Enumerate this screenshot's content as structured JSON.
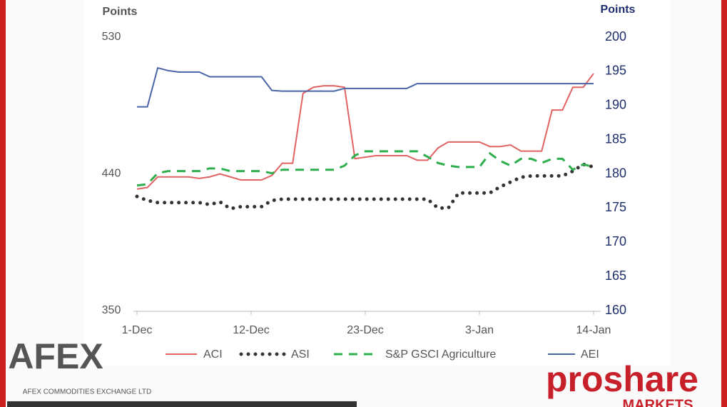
{
  "chart_data": {
    "type": "line",
    "y_label": "Points",
    "y2_label": "Points",
    "categories": [
      "1-Dec",
      null,
      null,
      null,
      null,
      null,
      null,
      null,
      null,
      null,
      null,
      "12-Dec",
      null,
      null,
      null,
      null,
      null,
      null,
      null,
      null,
      null,
      null,
      "23-Dec",
      null,
      null,
      null,
      null,
      null,
      null,
      null,
      null,
      null,
      null,
      "3-Jan",
      null,
      null,
      null,
      null,
      null,
      null,
      null,
      null,
      null,
      null,
      "14-Jan"
    ],
    "ylim": [
      350,
      530
    ],
    "yticks": [
      350,
      440,
      530
    ],
    "y2lim": [
      160,
      200
    ],
    "y2ticks": [
      160,
      165,
      170,
      175,
      180,
      185,
      190,
      195,
      200
    ],
    "series": [
      {
        "name": "ACI",
        "color": "#e06262",
        "style": "solid",
        "values": [
          430,
          431,
          438,
          438,
          438,
          438,
          437,
          438,
          440,
          438,
          436,
          436,
          436,
          439,
          447,
          447,
          493,
          497,
          498,
          498,
          497,
          450,
          451,
          452,
          452,
          452,
          452,
          449,
          449,
          457,
          461,
          461,
          461,
          461,
          458,
          458,
          459,
          455,
          455,
          455,
          482,
          482,
          497,
          497,
          506
        ]
      },
      {
        "name": "ASI",
        "color": "#333333",
        "style": "dotted",
        "axis": "y2",
        "values": [
          176.7,
          176.1,
          175.8,
          175.8,
          175.8,
          175.8,
          175.8,
          175.5,
          175.9,
          174.9,
          175.2,
          175.2,
          175.2,
          176.1,
          176.3,
          176.3,
          176.3,
          176.3,
          176.3,
          176.3,
          176.3,
          176.3,
          176.3,
          176.3,
          176.3,
          176.3,
          176.3,
          176.3,
          176.3,
          175.0,
          175.0,
          177.2,
          177.2,
          177.2,
          177.2,
          178.1,
          178.8,
          179.5,
          179.7,
          179.7,
          179.7,
          179.7,
          180.4,
          181.4,
          181.0
        ]
      },
      {
        "name": "S&P GSCI Agriculture",
        "color": "#2fae4e",
        "style": "dashed",
        "axis": "y2",
        "values": [
          178.3,
          178.5,
          180.1,
          180.4,
          180.4,
          180.4,
          180.4,
          180.8,
          180.8,
          180.4,
          180.4,
          180.4,
          180.4,
          180.1,
          180.6,
          180.6,
          180.6,
          180.6,
          180.6,
          180.6,
          181.2,
          182.7,
          183.3,
          183.3,
          183.3,
          183.3,
          183.3,
          183.3,
          182.5,
          181.6,
          181.2,
          181.0,
          181.0,
          181.0,
          183.0,
          181.9,
          181.2,
          182.2,
          182.2,
          181.6,
          182.2,
          182.2,
          180.6,
          181.4,
          181.0
        ]
      },
      {
        "name": "AEI",
        "color": "#4a64a8",
        "style": "solid",
        "axis": "y2",
        "values": [
          189.8,
          189.8,
          195.5,
          195.1,
          194.9,
          194.9,
          194.9,
          194.2,
          194.2,
          194.2,
          194.2,
          194.2,
          194.2,
          192.2,
          192.1,
          192.1,
          192.1,
          192.1,
          192.1,
          192.1,
          192.5,
          192.5,
          192.5,
          192.5,
          192.5,
          192.5,
          192.5,
          193.2,
          193.2,
          193.2,
          193.2,
          193.2,
          193.2,
          193.2,
          193.2,
          193.2,
          193.2,
          193.2,
          193.2,
          193.2,
          193.2,
          193.2,
          193.2,
          193.2,
          193.2
        ]
      }
    ]
  },
  "logos": {
    "afex": "AFEX",
    "afex_tagline": "AFEX COMMODITIES EXCHANGE LTD",
    "proshare": "proshare",
    "proshare_sub": "MARKETS"
  }
}
